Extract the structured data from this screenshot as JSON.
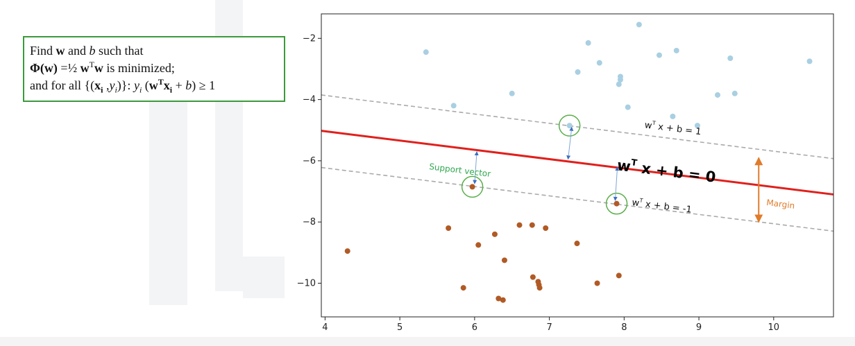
{
  "formula": {
    "line1": {
      "find": "Find ",
      "w": "w",
      "and": " and ",
      "b": "b",
      "rest": " such that"
    },
    "line2": {
      "phi": "Φ(w)",
      "eq": " =½ ",
      "w1": "w",
      "T": "T",
      "w2": "w",
      "rest": "  is minimized;"
    },
    "line3": {
      "pre": "and for all {(",
      "x": "x",
      "i": "i",
      "comma": " ,",
      "y": "y",
      "yi": "i",
      "close": ")}:  ",
      "yy": "y",
      "yyi": "i",
      "paren": " (",
      "wT_w": "w",
      "wT_T": "T",
      "x2": "x",
      "x2i": "i",
      "plus": " + ",
      "b": "b",
      "end": ") ≥ 1"
    }
  },
  "chart_data": {
    "type": "scatter",
    "xlim": [
      3.95,
      10.8
    ],
    "ylim": [
      -11.1,
      -1.2
    ],
    "xticks": [
      4,
      5,
      6,
      7,
      8,
      9,
      10
    ],
    "yticks": [
      -2,
      -4,
      -6,
      -8,
      -10
    ],
    "xtick_labels": [
      "4",
      "5",
      "6",
      "7",
      "8",
      "9",
      "10"
    ],
    "ytick_labels": [
      "−2",
      "−4",
      "−6",
      "−8",
      "−10"
    ],
    "series": [
      {
        "color": "#a9cfe2",
        "points": [
          [
            5.35,
            -2.45
          ],
          [
            5.72,
            -4.2
          ],
          [
            6.5,
            -3.8
          ],
          [
            7.38,
            -3.1
          ],
          [
            7.52,
            -2.15
          ],
          [
            7.67,
            -2.8
          ],
          [
            7.93,
            -3.5
          ],
          [
            7.95,
            -3.25
          ],
          [
            7.95,
            -3.35
          ],
          [
            8.05,
            -4.25
          ],
          [
            8.2,
            -1.55
          ],
          [
            8.47,
            -2.55
          ],
          [
            8.65,
            -4.55
          ],
          [
            8.7,
            -2.4
          ],
          [
            8.98,
            -4.85
          ],
          [
            9.25,
            -3.85
          ],
          [
            9.42,
            -2.65
          ],
          [
            9.48,
            -3.8
          ],
          [
            10.48,
            -2.75
          ],
          [
            7.27,
            -4.85
          ]
        ]
      },
      {
        "color": "#b15a25",
        "points": [
          [
            4.3,
            -8.95
          ],
          [
            5.65,
            -8.2
          ],
          [
            5.85,
            -10.15
          ],
          [
            5.97,
            -6.85
          ],
          [
            6.05,
            -8.75
          ],
          [
            6.27,
            -8.4
          ],
          [
            6.32,
            -10.5
          ],
          [
            6.38,
            -10.55
          ],
          [
            6.4,
            -9.25
          ],
          [
            6.6,
            -8.1
          ],
          [
            6.77,
            -8.1
          ],
          [
            6.78,
            -9.8
          ],
          [
            6.85,
            -9.95
          ],
          [
            6.86,
            -10.05
          ],
          [
            6.87,
            -10.15
          ],
          [
            6.95,
            -8.2
          ],
          [
            7.37,
            -8.7
          ],
          [
            7.64,
            -10.0
          ],
          [
            7.9,
            -7.4
          ],
          [
            7.93,
            -9.75
          ]
        ]
      }
    ],
    "lines": [
      {
        "name": "decision",
        "x": [
          3.95,
          10.8
        ],
        "y": [
          -5.02,
          -7.1
        ],
        "color": "#e0201c",
        "style": "solid"
      },
      {
        "name": "upper",
        "x": [
          3.95,
          10.8
        ],
        "y": [
          -3.85,
          -5.93
        ],
        "color": "#aaaaaa",
        "style": "dashed"
      },
      {
        "name": "lower",
        "x": [
          3.95,
          10.8
        ],
        "y": [
          -6.22,
          -8.3
        ],
        "color": "#aaaaaa",
        "style": "dashed"
      }
    ],
    "support_vectors": [
      [
        5.97,
        -6.85
      ],
      [
        7.27,
        -4.85
      ],
      [
        7.9,
        -7.4
      ]
    ],
    "distance_arrows": [
      {
        "from": [
          6.0,
          -6.75
        ],
        "to": [
          6.03,
          -5.7
        ]
      },
      {
        "from": [
          7.3,
          -4.9
        ],
        "to": [
          7.25,
          -5.95
        ]
      },
      {
        "from": [
          7.88,
          -7.3
        ],
        "to": [
          7.91,
          -6.2
        ]
      }
    ],
    "annotations": {
      "upper_eq": {
        "w": "w",
        "T": "T",
        "rest": " x + b = 1",
        "x": 8.27,
        "y": -4.92
      },
      "lower_eq": {
        "w": "w",
        "T": "T",
        "rest": " x + b = -1",
        "x": 8.1,
        "y": -7.45
      },
      "main_eq": {
        "w": "w",
        "T": "T",
        "rest": " x + b = 0",
        "x": 7.9,
        "y": -6.3
      },
      "support": {
        "text": "Support vector",
        "x": 5.8,
        "y": -6.4
      },
      "margin": {
        "text": "Margin",
        "x": 9.9,
        "y": -7.45
      }
    },
    "margin_arrow": {
      "x": 9.8,
      "y_top": -5.9,
      "y_bottom": -8.0,
      "color": "#e07b2a"
    }
  }
}
